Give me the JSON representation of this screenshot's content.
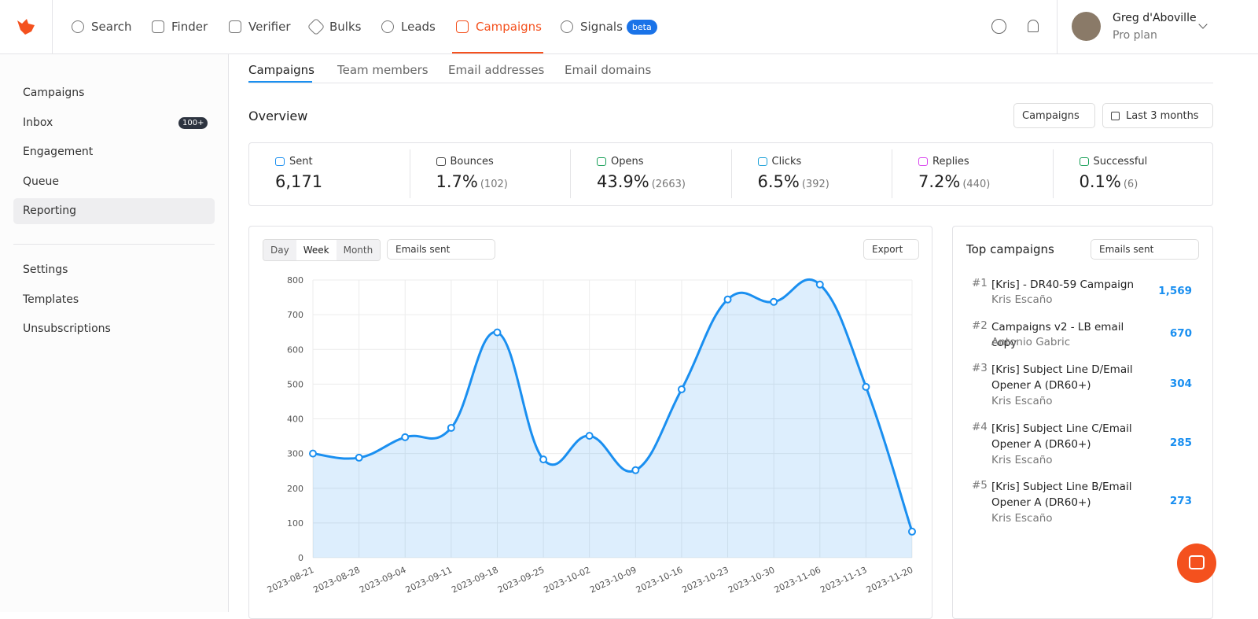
{
  "nav": {
    "items": [
      "Search",
      "Finder",
      "Verifier",
      "Bulks",
      "Leads",
      "Campaigns",
      "Signals"
    ],
    "badge": "beta",
    "user": {
      "name": "Greg d'Aboville",
      "plan": "Pro plan"
    }
  },
  "sidebar": {
    "items": [
      "Campaigns",
      "Inbox",
      "Engagement",
      "Queue",
      "Reporting"
    ],
    "inbox_badge": "100+",
    "items2": [
      "Settings",
      "Templates",
      "Unsubscriptions"
    ]
  },
  "tabs": [
    "Campaigns",
    "Team members",
    "Email addresses",
    "Email domains"
  ],
  "overview": {
    "title": "Overview",
    "filter": "Campaigns",
    "range": "Last 3 months"
  },
  "stats": [
    {
      "label": "Sent",
      "value": "6,171"
    },
    {
      "label": "Bounces",
      "value": "1.7%",
      "count": "(102)"
    },
    {
      "label": "Opens",
      "value": "43.9%",
      "count": "(2663)"
    },
    {
      "label": "Clicks",
      "value": "6.5%",
      "count": "(392)"
    },
    {
      "label": "Replies",
      "value": "7.2%",
      "count": "(440)"
    },
    {
      "label": "Successful",
      "value": "0.1%",
      "count": "(6)"
    }
  ],
  "chart_controls": {
    "periods": [
      "Day",
      "Week",
      "Month"
    ],
    "metric": "Emails sent",
    "export": "Export"
  },
  "chart_data": {
    "type": "line",
    "x": [
      "2023-08-21",
      "2023-08-28",
      "2023-09-04",
      "2023-09-11",
      "2023-09-18",
      "2023-09-25",
      "2023-10-02",
      "2023-10-09",
      "2023-10-16",
      "2023-10-23",
      "2023-10-30",
      "2023-11-06",
      "2023-11-13",
      "2023-11-20"
    ],
    "values": [
      300,
      288,
      347,
      374,
      649,
      283,
      351,
      252,
      485,
      744,
      737,
      787,
      492,
      75
    ],
    "ylim": [
      0,
      800
    ],
    "yticks": [
      0,
      100,
      200,
      300,
      400,
      500,
      600,
      700,
      800
    ],
    "color": "#1a8ff0",
    "grid": true
  },
  "top": {
    "title": "Top campaigns",
    "metric": "Emails sent",
    "items": [
      {
        "rank": "#1",
        "name": "[Kris] - DR40-59 Campaign",
        "owner": "Kris Escaño",
        "count": "1,569"
      },
      {
        "rank": "#2",
        "name": "Campaigns v2 - LB email copy",
        "owner": "Antonio Gabric",
        "count": "670"
      },
      {
        "rank": "#3",
        "name": "[Kris] Subject Line D/Email Opener A (DR60+)",
        "owner": "Kris Escaño",
        "count": "304"
      },
      {
        "rank": "#4",
        "name": "[Kris] Subject Line C/Email Opener A (DR60+)",
        "owner": "Kris Escaño",
        "count": "285"
      },
      {
        "rank": "#5",
        "name": "[Kris] Subject Line B/Email Opener A (DR60+)",
        "owner": "Kris Escaño",
        "count": "273"
      }
    ]
  }
}
